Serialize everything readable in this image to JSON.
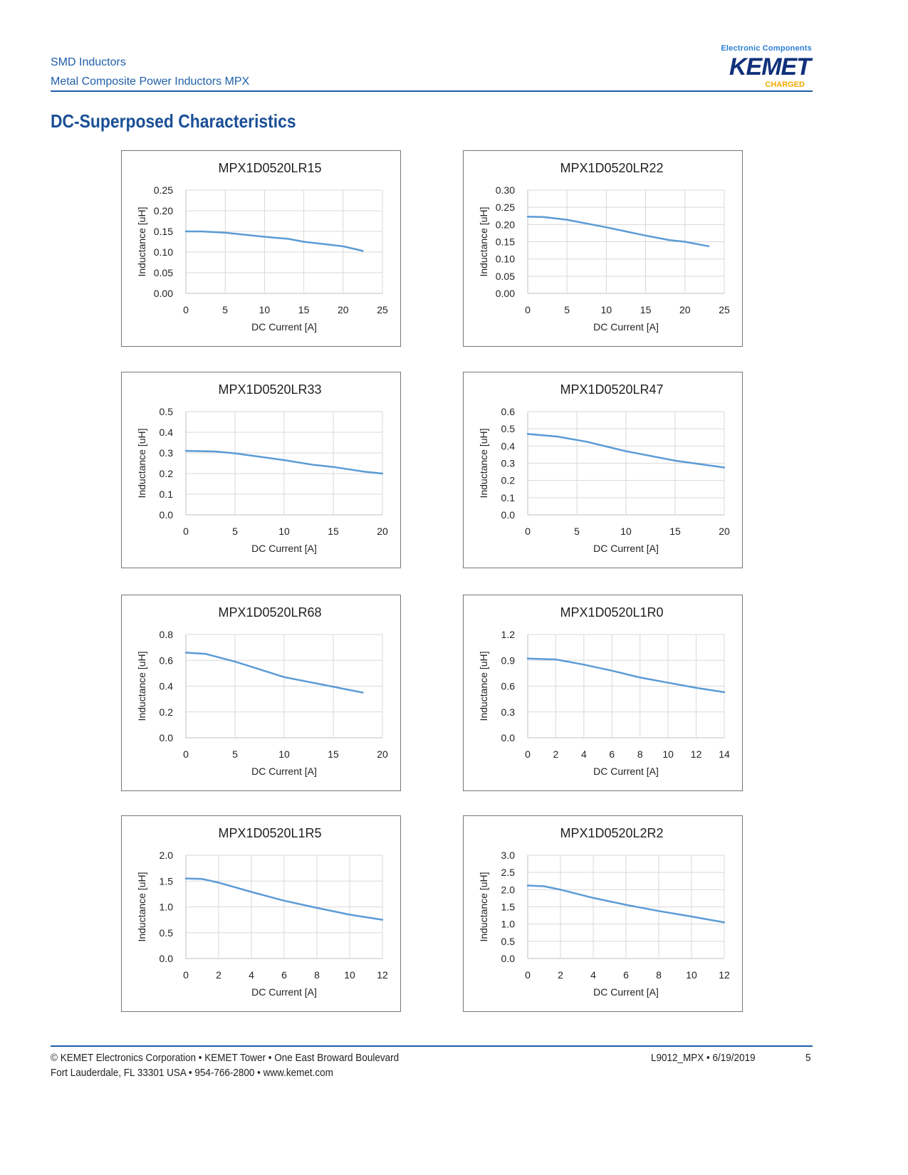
{
  "header": {
    "line1": "SMD Inductors",
    "line2": "Metal Composite Power Inductors MPX"
  },
  "logo": {
    "tagline": "Electronic Components",
    "brand": "KEMET",
    "sub": "CHARGED"
  },
  "title": "DC-Superposed Characteristics",
  "colors": {
    "accent": "#1f5fa8",
    "line": "#5b9bd5",
    "grid": "#d9d9d9"
  },
  "chart_data": [
    {
      "type": "line",
      "title": "MPX1D0520LR15",
      "xlabel": "DC Current [A]",
      "ylabel": "Inductance [uH]",
      "xlim": [
        0,
        25
      ],
      "ylim": [
        0,
        0.25
      ],
      "xticks": [
        "0",
        "5",
        "10",
        "15",
        "20",
        "25"
      ],
      "yticks": [
        "0.00",
        "0.05",
        "0.10",
        "0.15",
        "0.20",
        "0.25"
      ],
      "grid": true,
      "x": [
        0,
        2,
        5,
        10,
        13,
        15,
        20,
        22.5
      ],
      "y": [
        0.15,
        0.15,
        0.147,
        0.137,
        0.132,
        0.125,
        0.114,
        0.103
      ]
    },
    {
      "type": "line",
      "title": "MPX1D0520LR22",
      "xlabel": "DC Current [A]",
      "ylabel": "Inductance [uH]",
      "xlim": [
        0,
        25
      ],
      "ylim": [
        0,
        0.3
      ],
      "xticks": [
        "0",
        "5",
        "10",
        "15",
        "20",
        "25"
      ],
      "yticks": [
        "0.00",
        "0.05",
        "0.10",
        "0.15",
        "0.20",
        "0.25",
        "0.30"
      ],
      "grid": true,
      "x": [
        0,
        2,
        5,
        10,
        15,
        18,
        20,
        23
      ],
      "y": [
        0.223,
        0.222,
        0.214,
        0.192,
        0.168,
        0.155,
        0.15,
        0.137
      ]
    },
    {
      "type": "line",
      "title": "MPX1D0520LR33",
      "xlabel": "DC Current [A]",
      "ylabel": "Inductance [uH]",
      "xlim": [
        0,
        20
      ],
      "ylim": [
        0,
        0.5
      ],
      "xticks": [
        "0",
        "5",
        "10",
        "15",
        "20"
      ],
      "yticks": [
        "0.0",
        "0.1",
        "0.2",
        "0.3",
        "0.4",
        "0.5"
      ],
      "grid": true,
      "x": [
        0,
        3,
        5,
        10,
        13,
        15,
        18,
        20
      ],
      "y": [
        0.31,
        0.307,
        0.298,
        0.265,
        0.242,
        0.232,
        0.21,
        0.2
      ]
    },
    {
      "type": "line",
      "title": "MPX1D0520LR47",
      "xlabel": "DC Current [A]",
      "ylabel": "Inductance [uH]",
      "xlim": [
        0,
        20
      ],
      "ylim": [
        0,
        0.6
      ],
      "xticks": [
        "0",
        "5",
        "10",
        "15",
        "20"
      ],
      "yticks": [
        "0.0",
        "0.1",
        "0.2",
        "0.3",
        "0.4",
        "0.5",
        "0.6"
      ],
      "grid": true,
      "x": [
        0,
        3,
        6,
        10,
        15,
        20
      ],
      "y": [
        0.47,
        0.455,
        0.425,
        0.37,
        0.315,
        0.275
      ]
    },
    {
      "type": "line",
      "title": "MPX1D0520LR68",
      "xlabel": "DC Current [A]",
      "ylabel": "Inductance [uH]",
      "xlim": [
        0,
        20
      ],
      "ylim": [
        0,
        0.8
      ],
      "xticks": [
        "0",
        "5",
        "10",
        "15",
        "20"
      ],
      "yticks": [
        "0.0",
        "0.2",
        "0.4",
        "0.6",
        "0.8"
      ],
      "grid": true,
      "x": [
        0,
        2,
        5,
        10,
        15,
        18
      ],
      "y": [
        0.66,
        0.65,
        0.59,
        0.47,
        0.395,
        0.35
      ]
    },
    {
      "type": "line",
      "title": "MPX1D0520L1R0",
      "xlabel": "DC Current [A]",
      "ylabel": "Inductance [uH]",
      "xlim": [
        0,
        14
      ],
      "ylim": [
        0,
        1.2
      ],
      "xticks": [
        "0",
        "2",
        "4",
        "6",
        "8",
        "10",
        "12",
        "14"
      ],
      "yticks": [
        "0.0",
        "0.3",
        "0.6",
        "0.9",
        "1.2"
      ],
      "grid": true,
      "x": [
        0,
        2,
        4,
        6,
        8,
        10,
        12,
        14
      ],
      "y": [
        0.92,
        0.91,
        0.85,
        0.78,
        0.7,
        0.64,
        0.58,
        0.53
      ]
    },
    {
      "type": "line",
      "title": "MPX1D0520L1R5",
      "xlabel": "DC Current [A]",
      "ylabel": "Inductance [uH]",
      "xlim": [
        0,
        12
      ],
      "ylim": [
        0,
        2.0
      ],
      "xticks": [
        "0",
        "2",
        "4",
        "6",
        "8",
        "10",
        "12"
      ],
      "yticks": [
        "0.0",
        "0.5",
        "1.0",
        "1.5",
        "2.0"
      ],
      "grid": true,
      "x": [
        0,
        1,
        2,
        4,
        6,
        8,
        10,
        12
      ],
      "y": [
        1.55,
        1.54,
        1.47,
        1.29,
        1.12,
        0.98,
        0.85,
        0.75
      ]
    },
    {
      "type": "line",
      "title": "MPX1D0520L2R2",
      "xlabel": "DC Current [A]",
      "ylabel": "Inductance [uH]",
      "xlim": [
        0,
        12
      ],
      "ylim": [
        0,
        3.0
      ],
      "xticks": [
        "0",
        "2",
        "4",
        "6",
        "8",
        "10",
        "12"
      ],
      "yticks": [
        "0.0",
        "0.5",
        "1.0",
        "1.5",
        "2.0",
        "2.5",
        "3.0"
      ],
      "grid": true,
      "x": [
        0,
        1,
        2,
        4,
        6,
        8,
        10,
        12
      ],
      "y": [
        2.12,
        2.1,
        2.0,
        1.76,
        1.56,
        1.38,
        1.22,
        1.05
      ]
    }
  ],
  "footer": {
    "line1": "© KEMET Electronics Corporation • KEMET Tower • One East Broward Boulevard",
    "line2": "Fort Lauderdale, FL 33301 USA • 954-766-2800 • www.kemet.com",
    "doc": "L9012_MPX • 6/19/2019",
    "page": "5"
  }
}
